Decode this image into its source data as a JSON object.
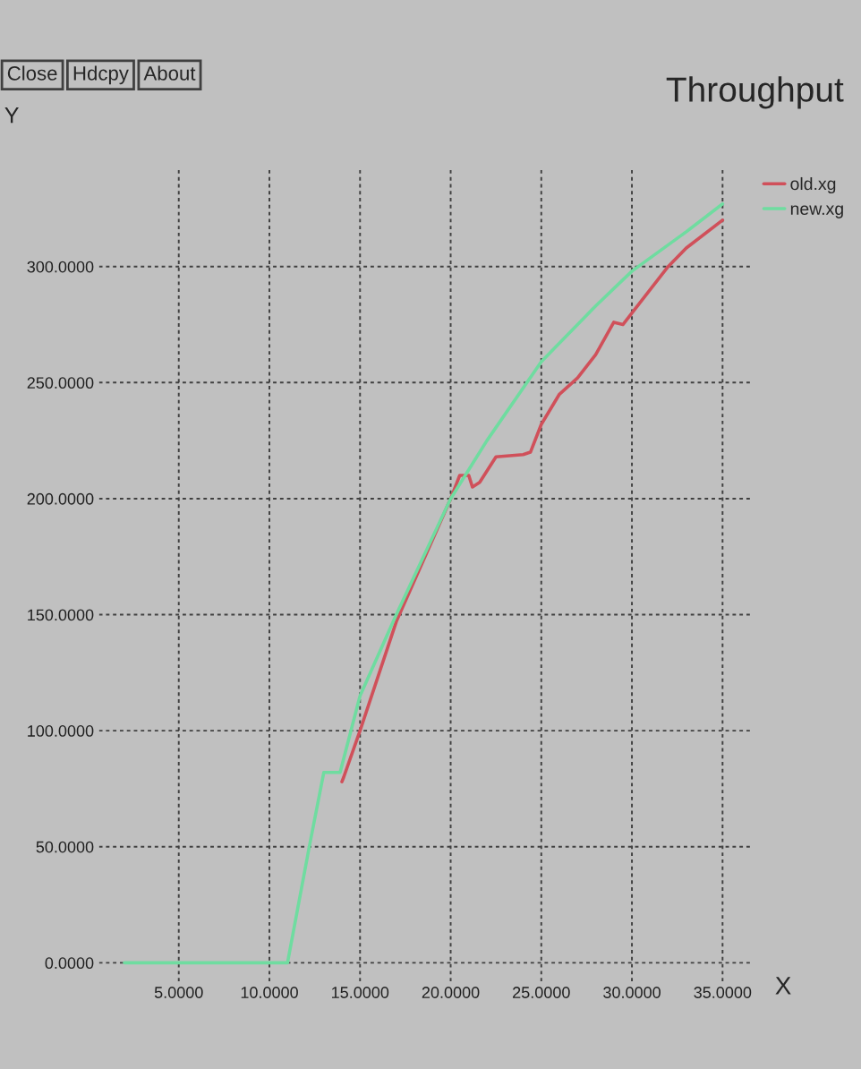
{
  "chart_data": {
    "type": "line",
    "title": "Throughput",
    "xlabel": "X",
    "ylabel": "Y",
    "annotations": [
      "Close",
      "Hdcpy",
      "About"
    ],
    "x": [
      2,
      11,
      12.2,
      13,
      13.9,
      15,
      17,
      20,
      22,
      25,
      28,
      30,
      33,
      35
    ],
    "series": [
      {
        "name": "old.xg",
        "color": "#d0505a",
        "x": [
          14,
          14.1,
          15,
          17,
          20,
          20.5,
          21,
          21.2,
          21.6,
          22.5,
          24,
          24.4,
          25,
          26,
          27,
          28,
          29,
          29.5,
          30,
          31,
          32,
          33,
          35
        ],
        "values": [
          78,
          80,
          100,
          147,
          200,
          210,
          210,
          205,
          207,
          218,
          219,
          220,
          232,
          245,
          252,
          262,
          276,
          275,
          280,
          290,
          300,
          308,
          320
        ]
      },
      {
        "name": "new.xg",
        "color": "#6fdca0",
        "values": [
          0,
          0,
          50,
          82,
          82,
          115,
          150,
          200,
          225,
          259,
          283,
          298,
          315,
          327
        ]
      }
    ],
    "xlim": [
      0.6,
      36.7
    ],
    "ylim": [
      -8,
      343
    ],
    "xticks": [
      {
        "value": 5,
        "label": "5.0000"
      },
      {
        "value": 10,
        "label": "10.0000"
      },
      {
        "value": 15,
        "label": "15.0000"
      },
      {
        "value": 20,
        "label": "20.0000"
      },
      {
        "value": 25,
        "label": "25.0000"
      },
      {
        "value": 30,
        "label": "30.0000"
      },
      {
        "value": 35,
        "label": "35.0000"
      }
    ],
    "yticks": [
      {
        "value": 0,
        "label": "0.0000"
      },
      {
        "value": 50,
        "label": "50.0000"
      },
      {
        "value": 100,
        "label": "100.0000"
      },
      {
        "value": 150,
        "label": "150.0000"
      },
      {
        "value": 200,
        "label": "200.0000"
      },
      {
        "value": 250,
        "label": "250.0000"
      },
      {
        "value": 300,
        "label": "300.0000"
      }
    ],
    "grid": true,
    "legend": "right",
    "line_style": "solid",
    "marker": "none"
  }
}
